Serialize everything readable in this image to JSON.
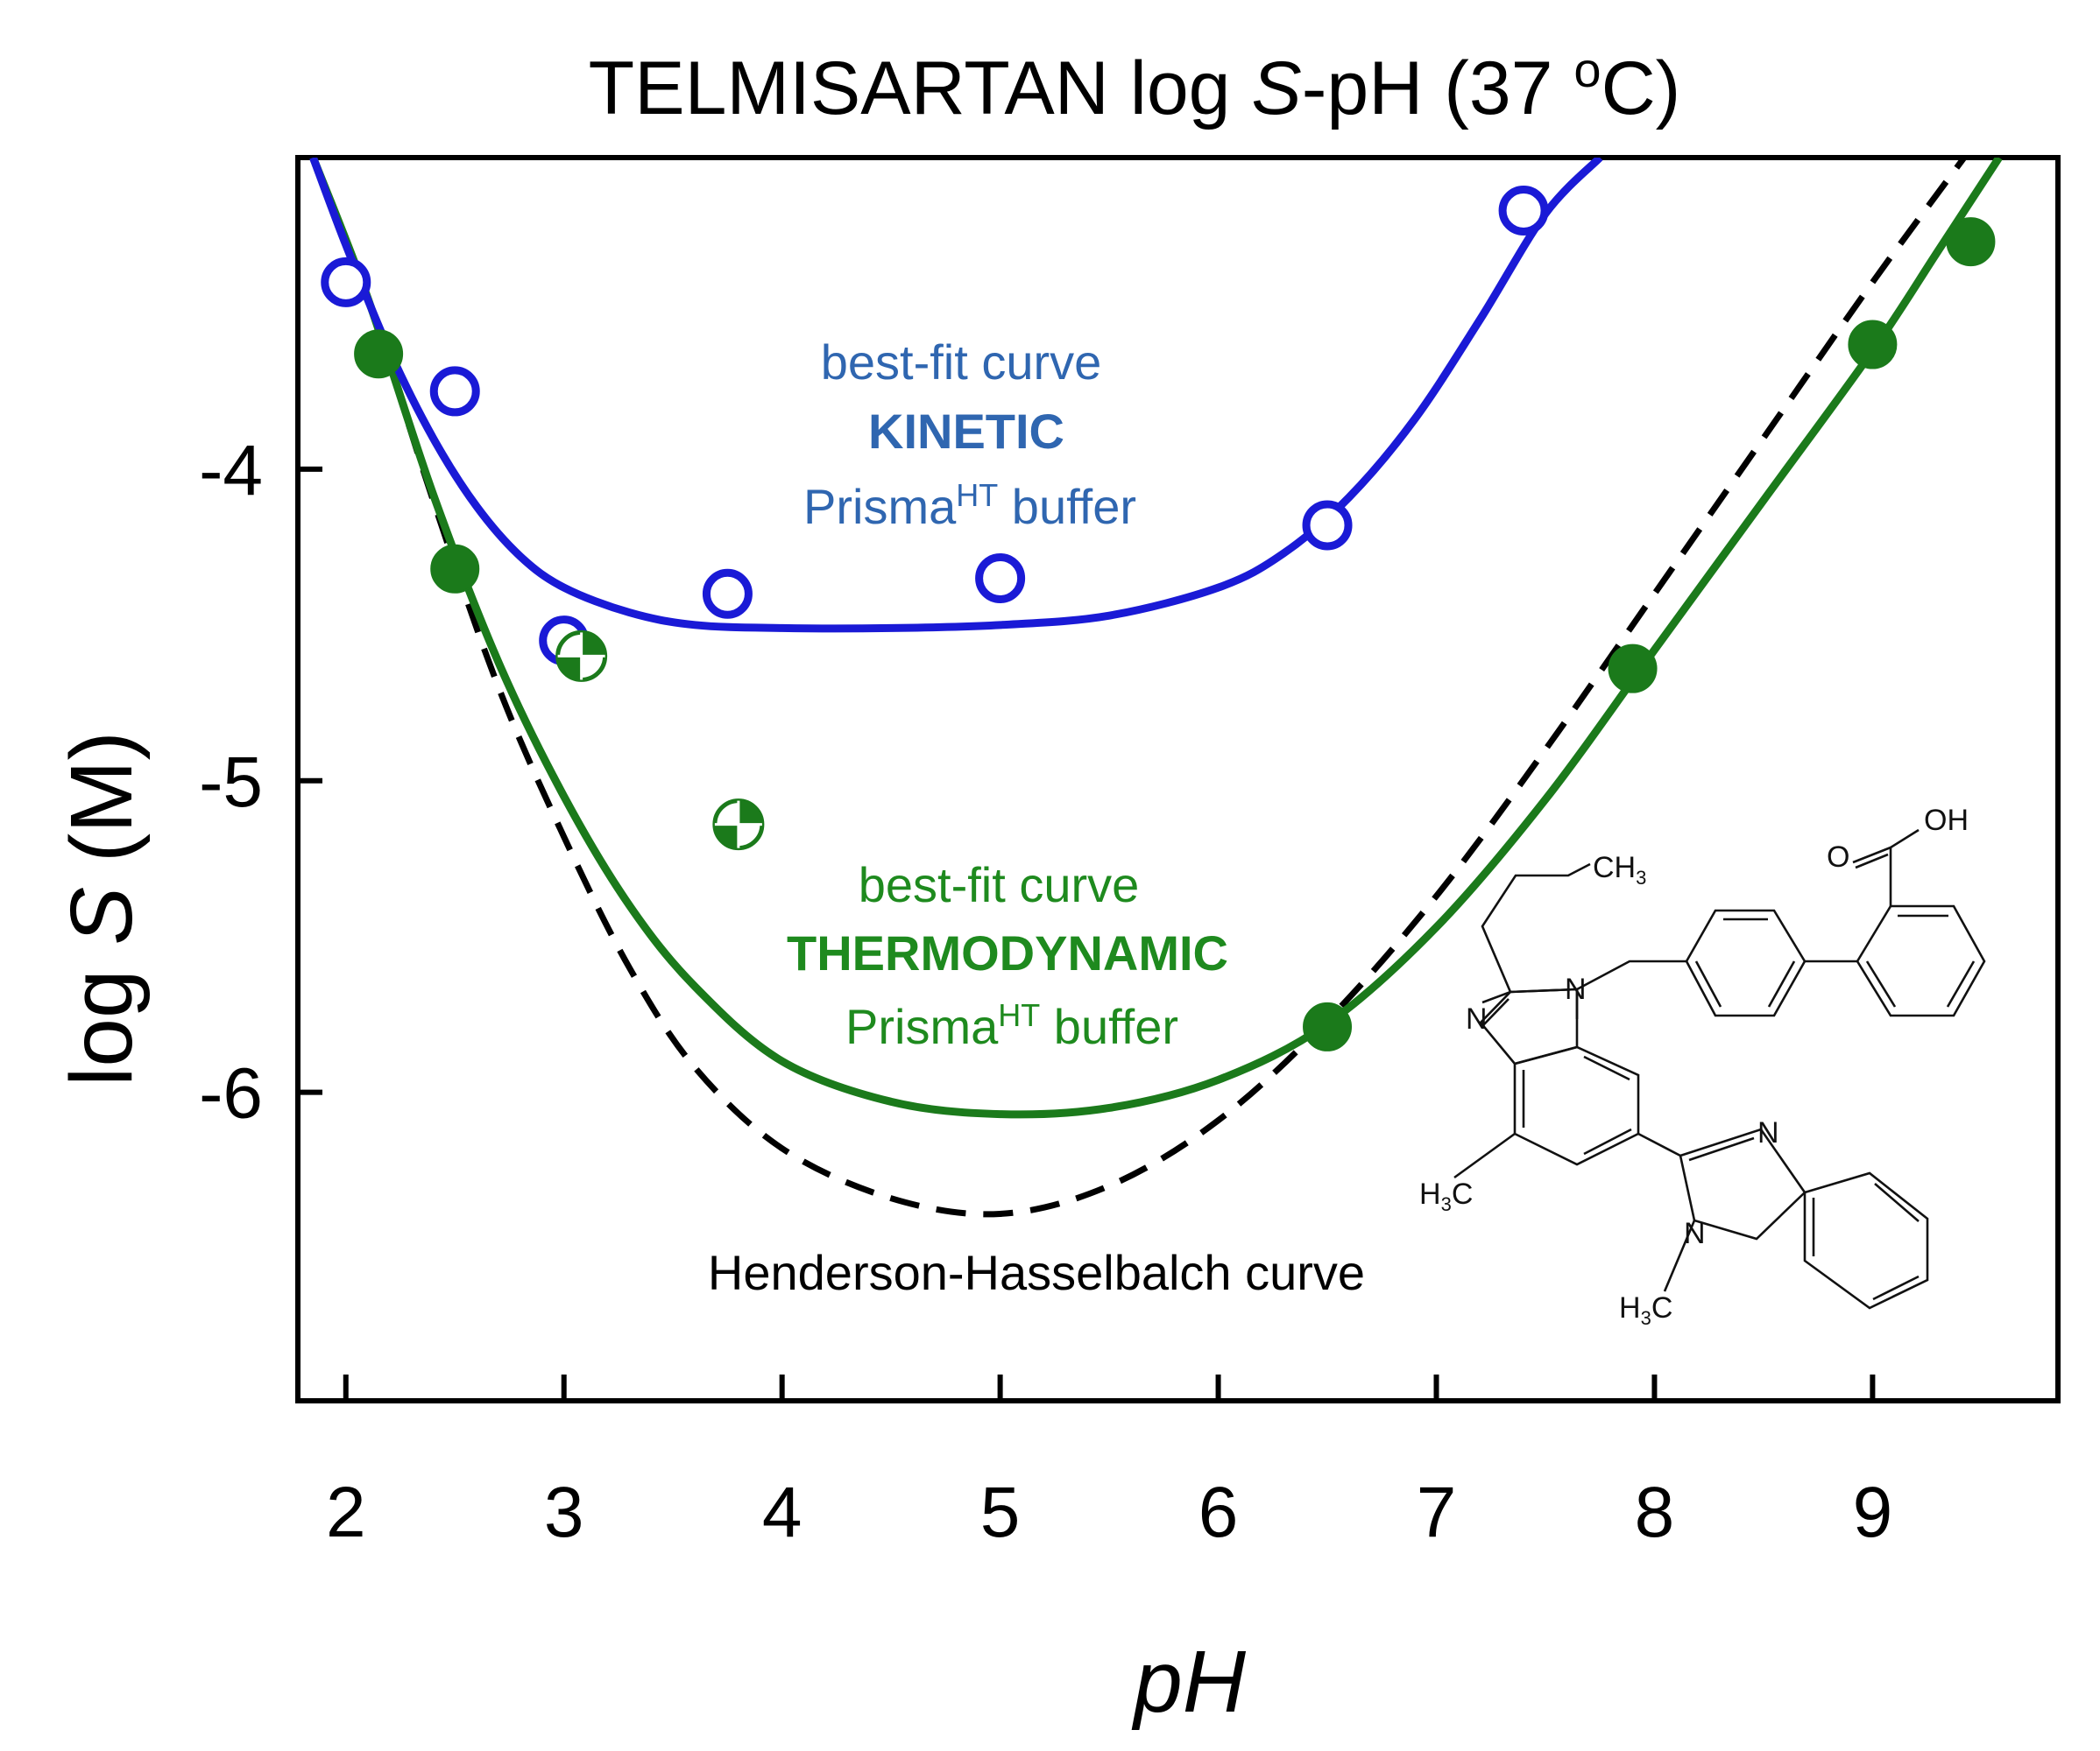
{
  "chart_data": {
    "type": "scatter",
    "title": {
      "main": "TELMISARTAN log ",
      "italic": "S",
      "suffix": "-pH (37 ",
      "degree": "o",
      "unit": "C)"
    },
    "xlabel": "pH",
    "ylabel": {
      "prefix": "log ",
      "italic": "S",
      "suffix": " (M)"
    },
    "xlim": [
      1.78,
      9.85
    ],
    "ylim": [
      -6.99,
      -3.0
    ],
    "xticks": [
      2,
      3,
      4,
      5,
      6,
      7,
      8,
      9
    ],
    "xtick_labels": [
      "2",
      "3",
      "4",
      "5",
      "6",
      "7",
      "8",
      "9"
    ],
    "yticks": [
      -4,
      -5,
      -6
    ],
    "ytick_labels": [
      "-4",
      "-5",
      "-6"
    ],
    "colors": {
      "kinetic": "#1a1ad6",
      "kinetic_text": "#2f66b0",
      "thermo": "#1b7a1b",
      "thermo_text": "#1e8a1e",
      "hh": "#000000"
    },
    "series": [
      {
        "name": "Kinetic (Prisma HT buffer)",
        "marker": "open-circle",
        "x": [
          2.0,
          2.5,
          3.0,
          3.75,
          5.0,
          6.5,
          7.4
        ],
        "y": [
          -3.4,
          -3.75,
          -4.55,
          -4.4,
          -4.35,
          -4.18,
          -3.17
        ]
      },
      {
        "name": "Thermodynamic (Prisma HT buffer)",
        "marker": "filled-circle",
        "x": [
          2.15,
          2.5,
          6.5,
          7.9,
          9.0,
          9.45
        ],
        "y": [
          -3.63,
          -4.32,
          -5.79,
          -4.64,
          -3.6,
          -3.27
        ]
      },
      {
        "name": "Thermodynamic (quartered marker)",
        "marker": "quartered-circle",
        "x": [
          3.08,
          3.8
        ],
        "y": [
          -4.6,
          -5.14
        ]
      }
    ],
    "curves": [
      {
        "name": "best-fit curve KINETIC",
        "style": "solid",
        "x": [
          1.85,
          2.0,
          2.2,
          2.4,
          2.6,
          2.8,
          3.0,
          3.3,
          3.6,
          4.0,
          4.5,
          5.0,
          5.5,
          6.0,
          6.3,
          6.6,
          6.9,
          7.2,
          7.5,
          7.75
        ],
        "y": [
          -3.0,
          -3.28,
          -3.62,
          -3.9,
          -4.12,
          -4.28,
          -4.38,
          -4.46,
          -4.5,
          -4.51,
          -4.51,
          -4.5,
          -4.47,
          -4.38,
          -4.27,
          -4.09,
          -3.84,
          -3.52,
          -3.18,
          -3.0
        ]
      },
      {
        "name": "best-fit curve THERMODYNAMIC",
        "style": "solid",
        "x": [
          1.85,
          2.1,
          2.4,
          2.7,
          3.0,
          3.3,
          3.6,
          4.0,
          4.5,
          5.0,
          5.5,
          6.0,
          6.5,
          7.0,
          7.5,
          8.0,
          8.5,
          9.0,
          9.3,
          9.58
        ],
        "y": [
          -3.0,
          -3.45,
          -4.08,
          -4.62,
          -5.05,
          -5.4,
          -5.66,
          -5.9,
          -6.03,
          -6.07,
          -6.05,
          -5.96,
          -5.78,
          -5.47,
          -5.06,
          -4.58,
          -4.1,
          -3.62,
          -3.3,
          -3.0
        ]
      },
      {
        "name": "Henderson-Hasselbalch curve",
        "style": "dashed",
        "x": [
          1.85,
          2.1,
          2.4,
          2.7,
          3.0,
          3.3,
          3.6,
          4.0,
          4.5,
          5.0,
          5.5,
          6.0,
          6.5,
          7.0,
          7.5,
          8.0,
          8.5,
          9.0,
          9.42
        ],
        "y": [
          -3.0,
          -3.45,
          -4.1,
          -4.7,
          -5.18,
          -5.6,
          -5.92,
          -6.18,
          -6.34,
          -6.39,
          -6.3,
          -6.09,
          -5.77,
          -5.37,
          -4.9,
          -4.4,
          -3.9,
          -3.4,
          -3.0
        ]
      }
    ],
    "annotations": {
      "kinetic": {
        "line1": "best-fit curve",
        "line2": "KINETIC",
        "line3_main": "Prisma",
        "line3_sup": "HT",
        "line3_tail": " buffer"
      },
      "thermo": {
        "line1": "best-fit curve",
        "line2": "THERMODYNAMIC",
        "line3_main": "Prisma",
        "line3_sup": "HT",
        "line3_tail": " buffer"
      },
      "hh": "Henderson-Hasselbalch curve"
    },
    "molecule": {
      "name": "telmisartan",
      "labels": {
        "oh": "OH",
        "o": "O",
        "ch3_propyl": {
          "main": "CH",
          "sub": "3"
        },
        "n_benz1_a": "N",
        "n_benz1_b": "N",
        "n_benz2_a": "N",
        "n_benz2_b": "N",
        "h3c_methyl": {
          "h": "H",
          "sub": "3",
          "c": "C"
        },
        "h3c_nmethyl": {
          "h": "H",
          "sub": "3",
          "c": "C"
        }
      }
    }
  }
}
